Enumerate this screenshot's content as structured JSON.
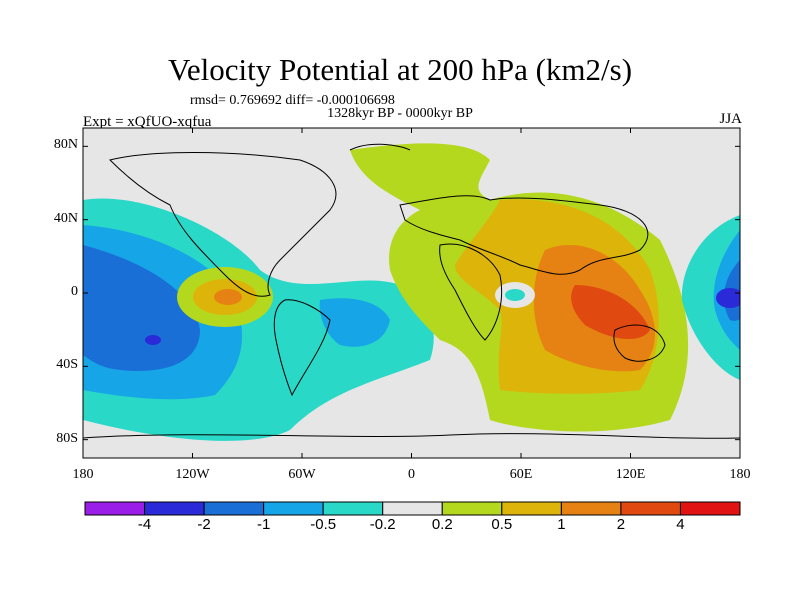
{
  "title": "Velocity Potential at 200 hPa (km2/s)",
  "stats_line": "rmsd= 0.769692 diff= -0.000106698",
  "period_label": "1328kyr BP - 0000kyr BP",
  "experiment_label": "Expt = xQfUO-xqfua",
  "season_label": "JJA",
  "map": {
    "projection": "cylindrical-equidistant",
    "lon_range": [
      -180,
      180
    ],
    "lat_range": [
      -90,
      90
    ],
    "lat_ticks": [
      {
        "value": 80,
        "label": "80N"
      },
      {
        "value": 40,
        "label": "40N"
      },
      {
        "value": 0,
        "label": "0"
      },
      {
        "value": -40,
        "label": "40S"
      },
      {
        "value": -80,
        "label": "80S"
      }
    ],
    "lon_ticks": [
      {
        "value": -180,
        "label": "180"
      },
      {
        "value": -120,
        "label": "120W"
      },
      {
        "value": -60,
        "label": "60W"
      },
      {
        "value": 0,
        "label": "0"
      },
      {
        "value": 60,
        "label": "60E"
      },
      {
        "value": 120,
        "label": "120E"
      },
      {
        "value": 180,
        "label": "180"
      }
    ]
  },
  "colorbar": {
    "colors": [
      "#9b1ee8",
      "#2a2ad8",
      "#1a6fd6",
      "#16a5e6",
      "#2ad8c8",
      "#e6e6e6",
      "#b4d81e",
      "#dcb40a",
      "#e68214",
      "#e04a10",
      "#e01212"
    ],
    "labels": [
      "-4",
      "-2",
      "-1",
      "-0.5",
      "-0.2",
      "0.2",
      "0.5",
      "1",
      "2",
      "4"
    ]
  }
}
